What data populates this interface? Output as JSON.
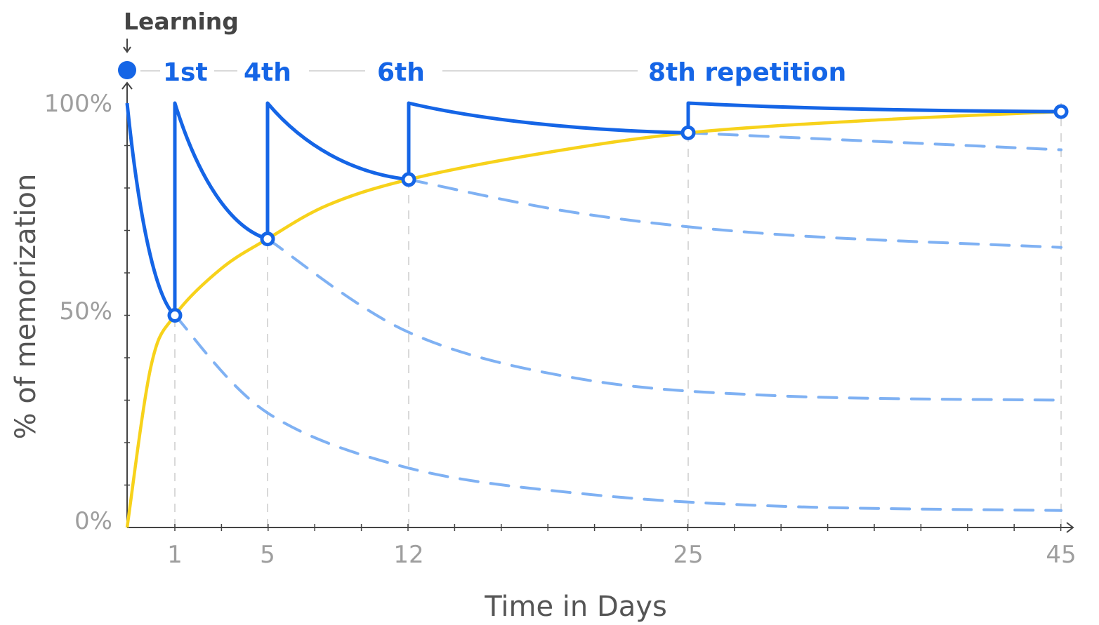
{
  "chart_data": {
    "type": "line",
    "title": "",
    "xlabel": "Time in Days",
    "ylabel": "% of memorization",
    "x_ticks": [
      1,
      5,
      12,
      25,
      45
    ],
    "y_ticks": [
      "0%",
      "50%",
      "100%"
    ],
    "xlim": [
      -1,
      45
    ],
    "ylim": [
      0,
      100
    ],
    "learning_label": "Learning",
    "repetition_labels": [
      "1st",
      "4th",
      "6th",
      "8th repetition"
    ],
    "series": [
      {
        "style": "solid-blue",
        "points": [
          [
            -1,
            100
          ],
          [
            1,
            50
          ],
          [
            1,
            100
          ],
          [
            5,
            68
          ],
          [
            5,
            100
          ],
          [
            12,
            82
          ],
          [
            12,
            100
          ],
          [
            25,
            93
          ],
          [
            25,
            100
          ],
          [
            45,
            98
          ]
        ]
      },
      {
        "style": "solid-yellow",
        "points": [
          [
            -1,
            0
          ],
          [
            0,
            38
          ],
          [
            1,
            50
          ],
          [
            3,
            61
          ],
          [
            5,
            68
          ],
          [
            8,
            76
          ],
          [
            12,
            82
          ],
          [
            18,
            88
          ],
          [
            25,
            93
          ],
          [
            35,
            96
          ],
          [
            45,
            98
          ]
        ]
      },
      {
        "style": "dashed-blue",
        "points": [
          [
            1,
            50
          ],
          [
            5,
            27
          ],
          [
            12,
            14
          ],
          [
            20,
            8
          ],
          [
            30,
            5
          ],
          [
            45,
            4
          ]
        ]
      },
      {
        "style": "dashed-blue",
        "points": [
          [
            5,
            68
          ],
          [
            12,
            46
          ],
          [
            20,
            35
          ],
          [
            30,
            31
          ],
          [
            45,
            30
          ]
        ]
      },
      {
        "style": "dashed-blue",
        "points": [
          [
            12,
            82
          ],
          [
            20,
            74
          ],
          [
            30,
            69
          ],
          [
            45,
            66
          ]
        ]
      },
      {
        "style": "dashed-blue",
        "points": [
          [
            25,
            93
          ],
          [
            35,
            91
          ],
          [
            45,
            89
          ]
        ]
      }
    ],
    "colors": {
      "blue": "#1565e6",
      "dashed": "#7fb1f3",
      "yellow": "#f7d21b",
      "axis": "#444444",
      "grid": "#d9d9d9",
      "tick_text": "#9e9e9e"
    }
  }
}
